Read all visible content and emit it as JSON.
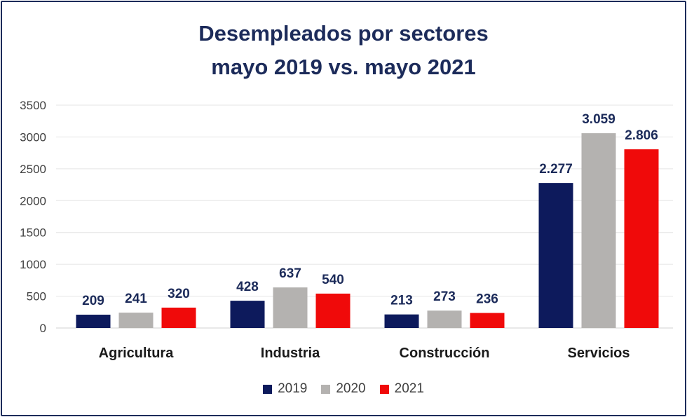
{
  "chart_data": {
    "type": "bar",
    "title_line1": "Desempleados por sectores",
    "title_line2": "mayo 2019 vs. mayo 2021",
    "categories": [
      "Agricultura",
      "Industria",
      "Construcción",
      "Servicios"
    ],
    "series": [
      {
        "name": "2019",
        "color": "#0d1a5c",
        "values": [
          209,
          428,
          213,
          2277
        ],
        "labels": [
          "209",
          "428",
          "213",
          "2.277"
        ]
      },
      {
        "name": "2020",
        "color": "#b4b2b0",
        "values": [
          241,
          637,
          273,
          3059
        ],
        "labels": [
          "241",
          "637",
          "273",
          "3.059"
        ]
      },
      {
        "name": "2021",
        "color": "#f00a0a",
        "values": [
          320,
          540,
          236,
          2806
        ],
        "labels": [
          "320",
          "540",
          "236",
          "2.806"
        ]
      }
    ],
    "yticks": [
      "0",
      "500",
      "1000",
      "1500",
      "2000",
      "2500",
      "3000",
      "3500"
    ],
    "ylim": [
      0,
      3500
    ],
    "grid": true,
    "legend_position": "bottom",
    "xlabel": "",
    "ylabel": ""
  }
}
